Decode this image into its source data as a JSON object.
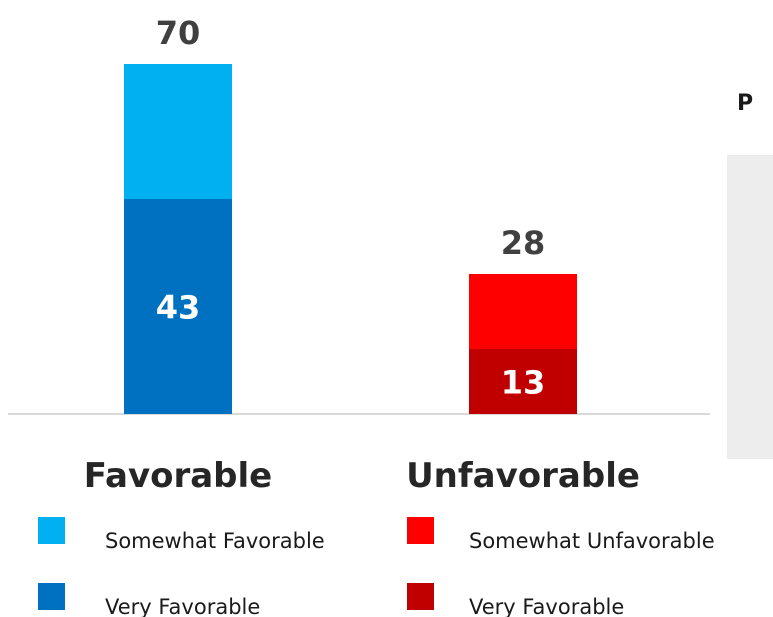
{
  "chart_data": {
    "type": "bar",
    "stacked": true,
    "categories": [
      "Favorable",
      "Unfavorable"
    ],
    "totals": [
      70,
      28
    ],
    "series": [
      {
        "segment": "very",
        "values": [
          43,
          13
        ],
        "colors": [
          "#0070C0",
          "#C00000"
        ],
        "data_labels": [
          "43",
          "13"
        ]
      },
      {
        "segment": "somewhat",
        "values": [
          27,
          15
        ],
        "colors": [
          "#00B0F0",
          "#FF0000"
        ]
      }
    ],
    "total_labels": [
      "70",
      "28"
    ],
    "legend": [
      {
        "label": "Somewhat Favorable",
        "color": "#00B0F0"
      },
      {
        "label": "Very Favorable",
        "color": "#0070C0"
      },
      {
        "label": "Somewhat Unfavorable",
        "color": "#FF0000"
      },
      {
        "label": "Very Favorable",
        "color": "#C00000"
      }
    ],
    "ylim": [
      0,
      70
    ],
    "grid": false
  },
  "side_panel": {
    "title_fragment": "P"
  },
  "colors": {
    "axis": "#d9d9d9",
    "panel_bg": "#ededed"
  }
}
